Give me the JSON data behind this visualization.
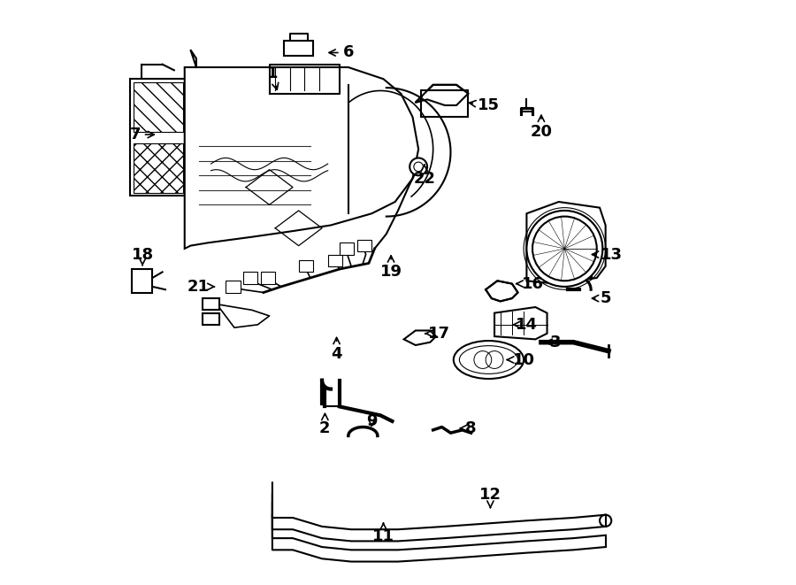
{
  "background_color": "#ffffff",
  "fig_width": 9.0,
  "fig_height": 6.61,
  "dpi": 100,
  "arrow_color": "#000000",
  "label_fontsize": 13,
  "label_fontweight": "bold",
  "line_color": "#000000",
  "line_width": 1.5,
  "label_positions": {
    "1": [
      0.285,
      0.875,
      0.295,
      0.84
    ],
    "2": [
      0.375,
      0.268,
      0.375,
      0.3
    ],
    "3": [
      0.77,
      0.415,
      0.75,
      0.415
    ],
    "4": [
      0.395,
      0.395,
      0.395,
      0.43
    ],
    "5": [
      0.855,
      0.49,
      0.825,
      0.49
    ],
    "6": [
      0.415,
      0.91,
      0.375,
      0.91
    ],
    "7": [
      0.05,
      0.77,
      0.09,
      0.77
    ],
    "8": [
      0.625,
      0.268,
      0.6,
      0.268
    ],
    "9": [
      0.455,
      0.28,
      0.455,
      0.265
    ],
    "10": [
      0.715,
      0.385,
      0.68,
      0.385
    ],
    "11": [
      0.475,
      0.083,
      0.475,
      0.108
    ],
    "12": [
      0.658,
      0.155,
      0.658,
      0.13
    ],
    "13": [
      0.865,
      0.565,
      0.825,
      0.565
    ],
    "14": [
      0.72,
      0.445,
      0.695,
      0.445
    ],
    "15": [
      0.655,
      0.82,
      0.615,
      0.825
    ],
    "16": [
      0.73,
      0.515,
      0.7,
      0.515
    ],
    "17": [
      0.57,
      0.43,
      0.545,
      0.43
    ],
    "18": [
      0.063,
      0.565,
      0.063,
      0.545
    ],
    "19": [
      0.488,
      0.535,
      0.488,
      0.57
    ],
    "20": [
      0.745,
      0.775,
      0.745,
      0.81
    ],
    "21": [
      0.158,
      0.51,
      0.188,
      0.51
    ],
    "22": [
      0.545,
      0.695,
      0.545,
      0.725
    ]
  }
}
